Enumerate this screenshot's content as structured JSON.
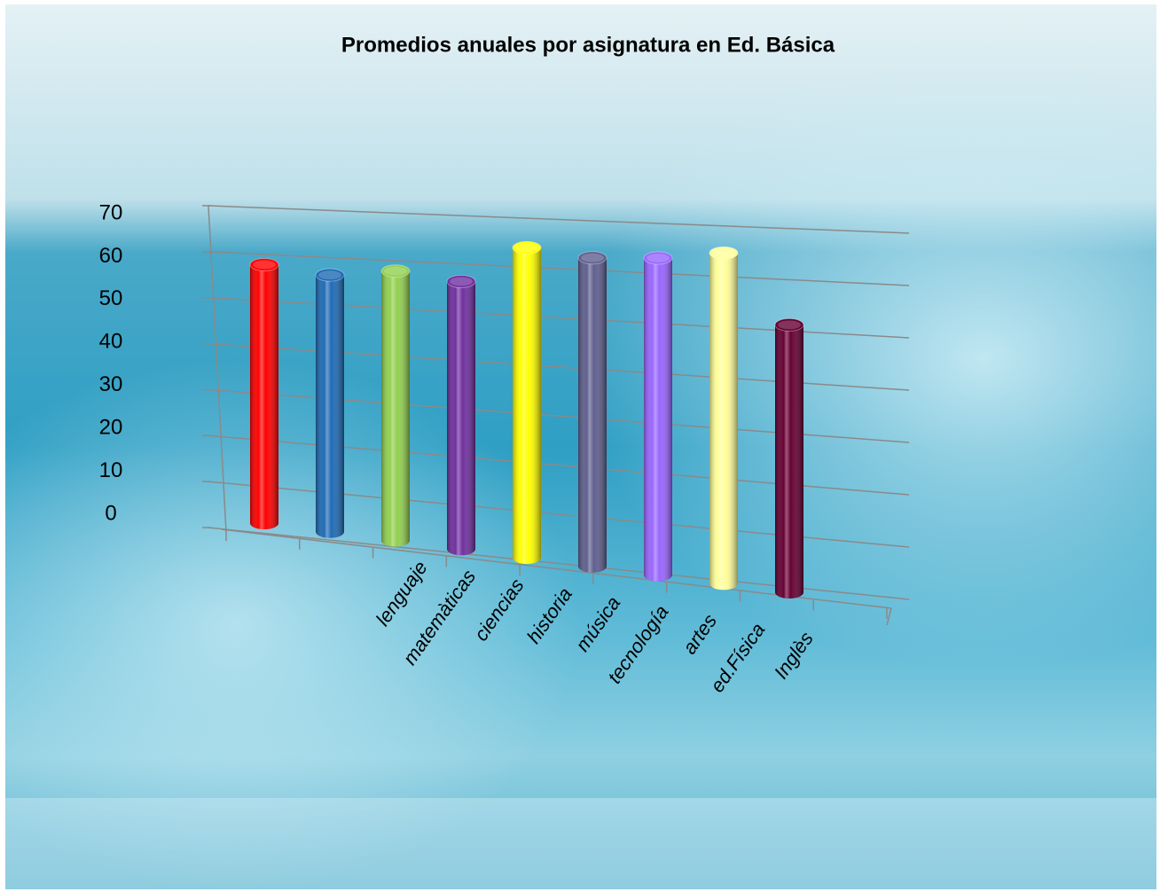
{
  "chart_data": {
    "type": "bar",
    "title": "Promedios anuales por asignatura en Ed. Básica",
    "categories": [
      "lenguaje",
      "matemàticas",
      "ciencias",
      "historia",
      "música",
      "tecnología",
      "artes",
      "ed.Física",
      "Inglès"
    ],
    "values": [
      55,
      54,
      56,
      55,
      63,
      62,
      63,
      65,
      52
    ],
    "colors": [
      "#ff0000",
      "#1f6bb5",
      "#92d050",
      "#7030a0",
      "#ffff00",
      "#5f5f8f",
      "#9966ff",
      "#ffff99",
      "#660033"
    ],
    "ylim": [
      0,
      70
    ],
    "yticks": [
      0,
      10,
      20,
      30,
      40,
      50,
      60,
      70
    ],
    "grid": true
  }
}
